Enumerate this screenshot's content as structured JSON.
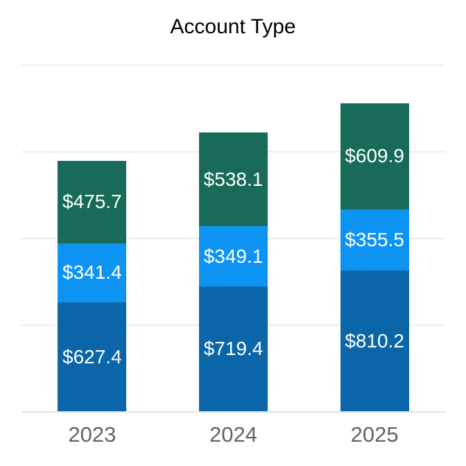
{
  "chart_data": {
    "type": "bar",
    "stacked": true,
    "title": "Account Type",
    "xlabel": "",
    "ylabel": "",
    "categories": [
      "2023",
      "2024",
      "2025"
    ],
    "series": [
      {
        "name": "bottom-segment",
        "color": "#0a66a8",
        "values": [
          627.4,
          719.4,
          810.2
        ]
      },
      {
        "name": "middle-segment",
        "color": "#0d94f2",
        "values": [
          341.4,
          349.1,
          355.5
        ]
      },
      {
        "name": "top-segment",
        "color": "#176b58",
        "values": [
          475.7,
          538.1,
          609.9
        ]
      }
    ],
    "value_prefix": "$",
    "value_decimals": 1,
    "value_labels": [
      [
        "$627.4",
        "$341.4",
        "$475.7"
      ],
      [
        "$719.4",
        "$349.1",
        "$538.1"
      ],
      [
        "$810.2",
        "$355.5",
        "$609.9"
      ]
    ],
    "ylim": [
      0,
      2112
    ],
    "y_gridlines": [
      500,
      1000,
      1500,
      2000
    ],
    "y_tick_labels_visible": false,
    "grid": true,
    "legend_position": "none"
  },
  "styles": {
    "background": "#ffffff",
    "title_color": "#000000",
    "axis_label_color": "#5f6368",
    "value_label_color": "#ffffff",
    "gridline_color": "#ececec",
    "axis_line_color": "#e0e0e0"
  }
}
